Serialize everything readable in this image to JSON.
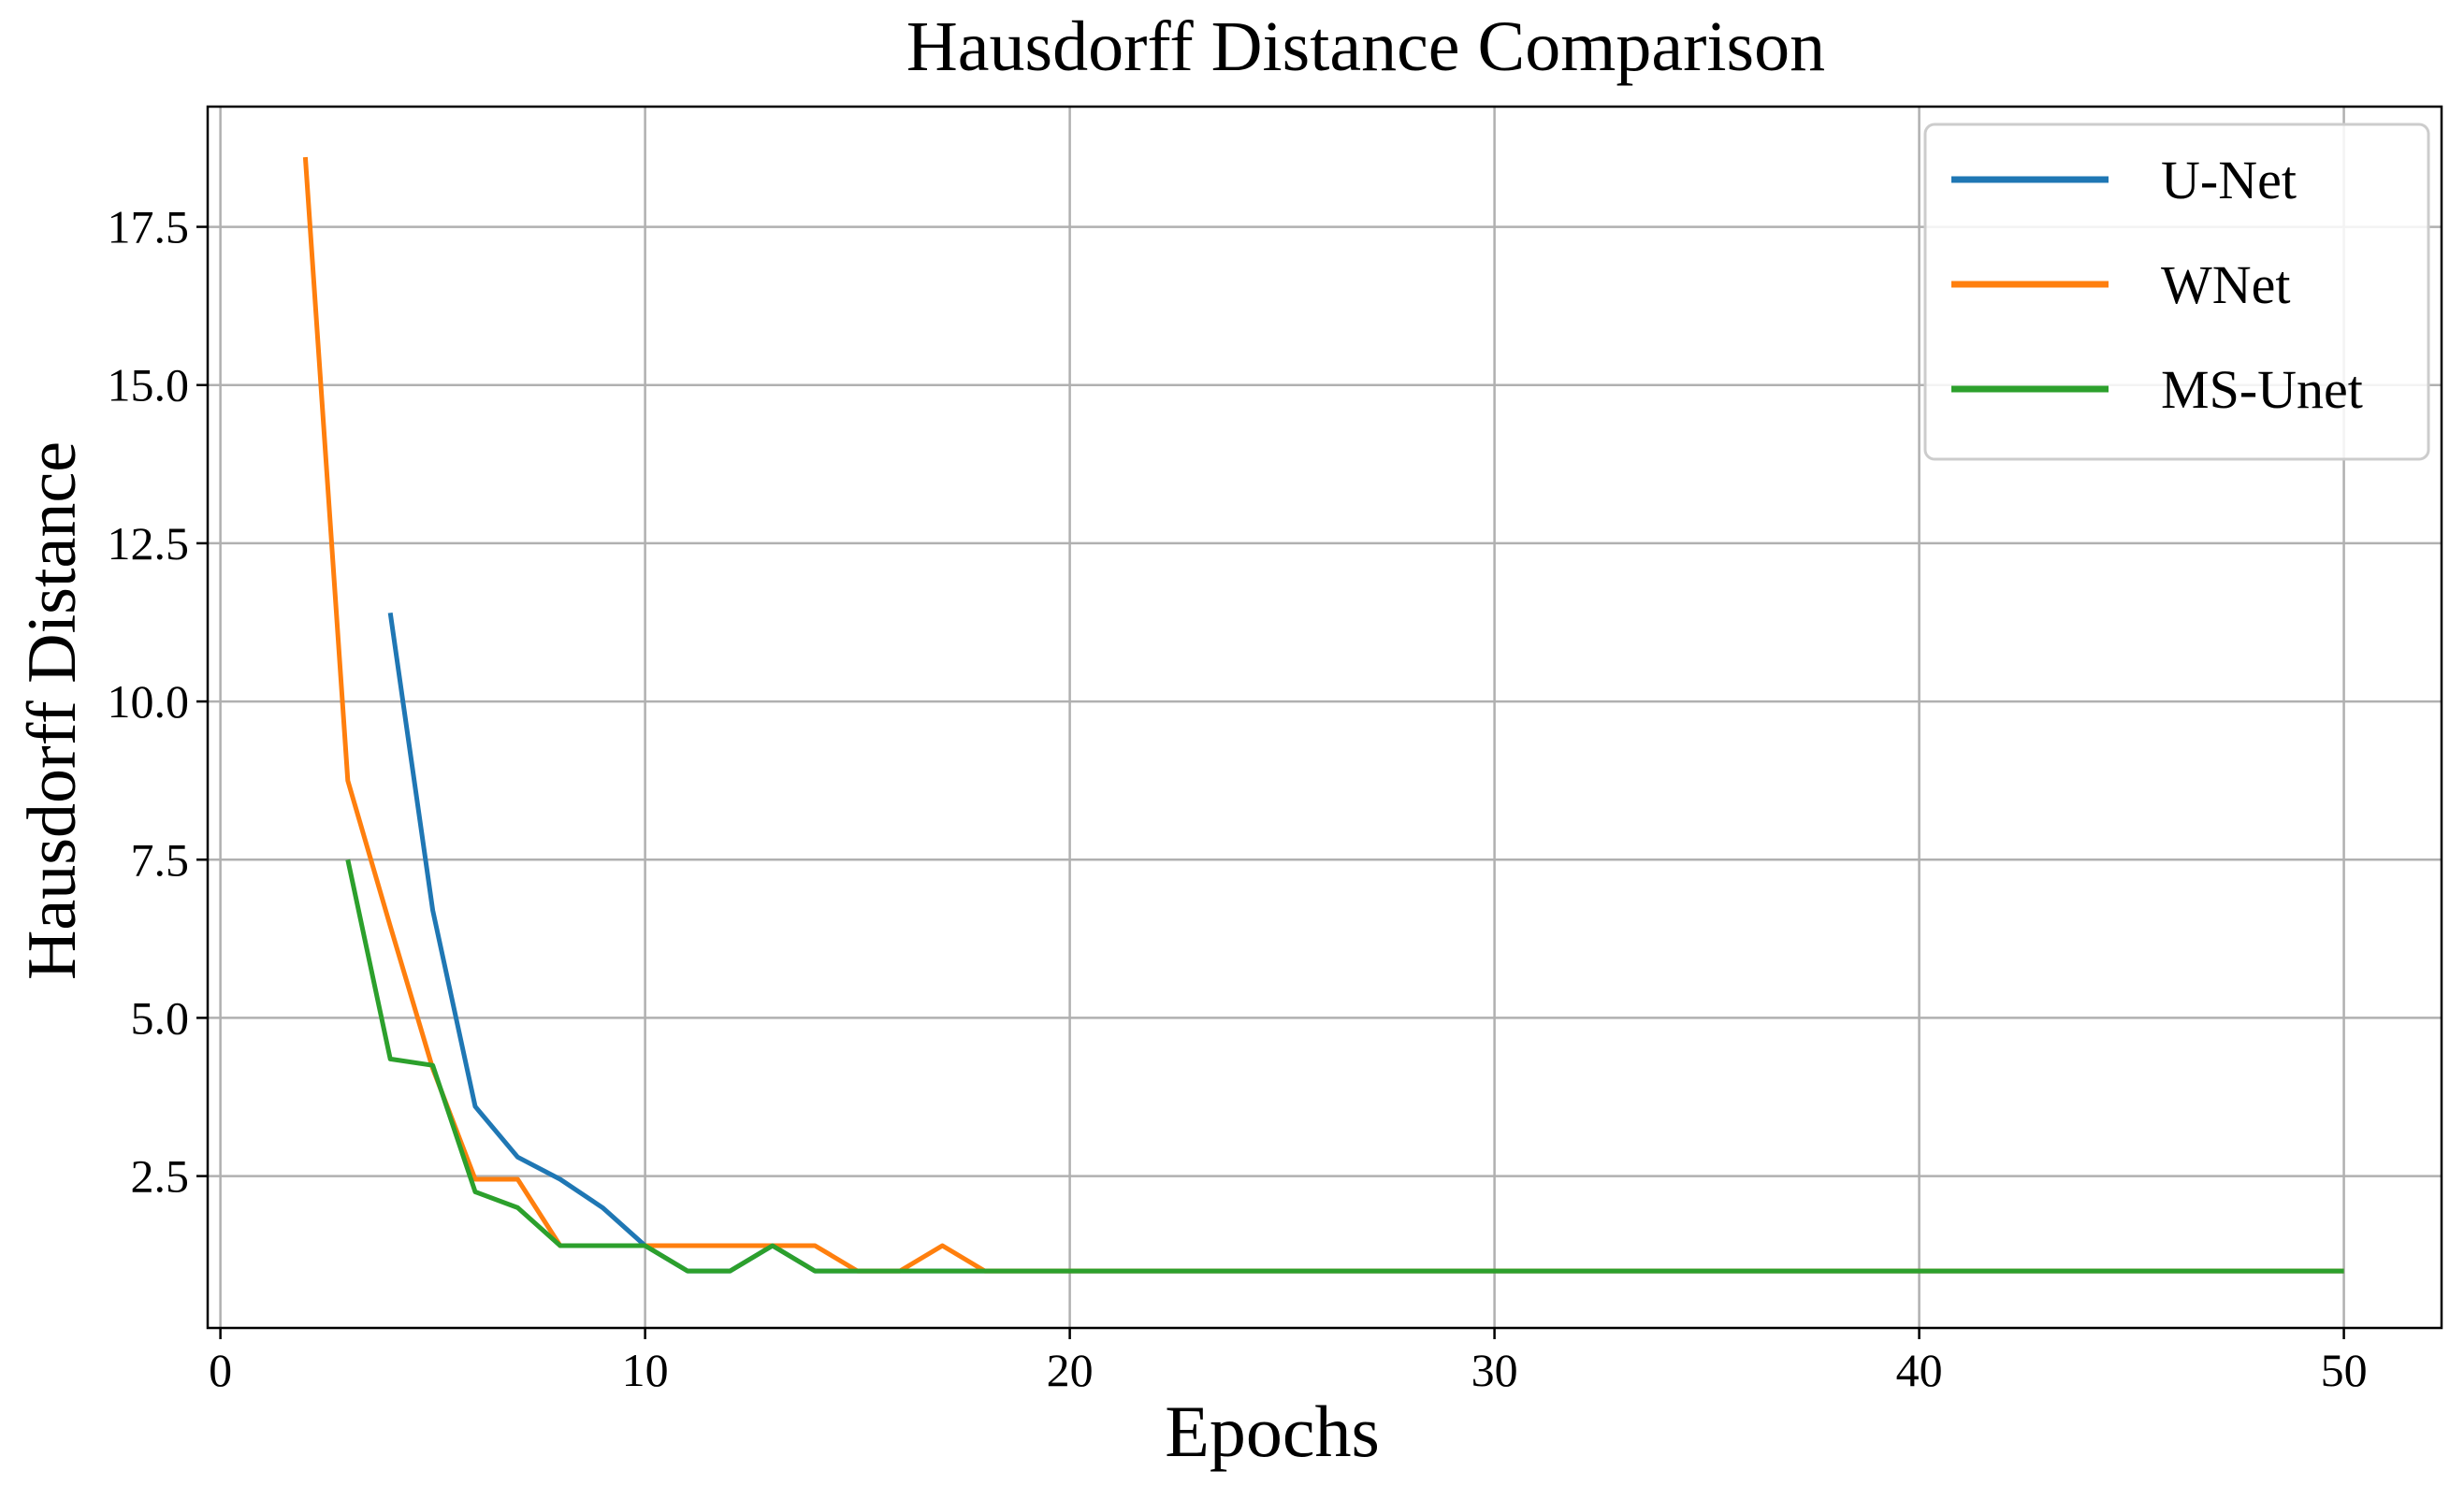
{
  "chart_data": {
    "type": "line",
    "title": "Hausdorff Distance Comparison",
    "xlabel": "Epochs",
    "ylabel": "Hausdorff Distance",
    "xlim": [
      -0.3,
      52.3
    ],
    "ylim": [
      0.1,
      19.4
    ],
    "xticks": [
      0,
      10,
      20,
      30,
      40,
      50
    ],
    "xtick_labels": [
      "0",
      "10",
      "20",
      "30",
      "40",
      "50"
    ],
    "yticks": [
      2.5,
      5.0,
      7.5,
      10.0,
      12.5,
      15.0,
      17.5
    ],
    "ytick_labels": [
      "2.5",
      "5.0",
      "7.5",
      "10.0",
      "12.5",
      "15.0",
      "17.5"
    ],
    "grid": true,
    "legend_position": "top-right",
    "series": [
      {
        "name": "U-Net",
        "color": "#1f77b4",
        "x": [
          4,
          5,
          6,
          7,
          8,
          9,
          10,
          11,
          12,
          13,
          14,
          15,
          16,
          17,
          18,
          19,
          20,
          21,
          22,
          23,
          24,
          25,
          26,
          27,
          28,
          29,
          30,
          31,
          32,
          33,
          34,
          35,
          36,
          37,
          38,
          39,
          40,
          41,
          42,
          43,
          44,
          45,
          46,
          47,
          48,
          49,
          50
        ],
        "y": [
          11.4,
          6.7,
          3.6,
          2.8,
          2.45,
          2.0,
          1.4,
          1.0,
          1.0,
          1.4,
          1.0,
          1.0,
          1.0,
          1.0,
          1.0,
          1.0,
          1.0,
          1.0,
          1.0,
          1.0,
          1.0,
          1.0,
          1.0,
          1.0,
          1.0,
          1.0,
          1.0,
          1.0,
          1.0,
          1.0,
          1.0,
          1.0,
          1.0,
          1.0,
          1.0,
          1.0,
          1.0,
          1.0,
          1.0,
          1.0,
          1.0,
          1.0,
          1.0,
          1.0,
          1.0,
          1.0,
          1.0
        ]
      },
      {
        "name": "WNet",
        "color": "#ff7f0e",
        "x": [
          2,
          3,
          4,
          5,
          6,
          7,
          8,
          9,
          10,
          11,
          12,
          13,
          14,
          15,
          16,
          17,
          18,
          19,
          20,
          21,
          22,
          23,
          24,
          25,
          26,
          27,
          28,
          29,
          30,
          31,
          32,
          33,
          34,
          35,
          36,
          37,
          38,
          39,
          40,
          41,
          42,
          43,
          44,
          45,
          46,
          47,
          48,
          49,
          50
        ],
        "y": [
          18.6,
          8.75,
          6.45,
          4.2,
          2.45,
          2.45,
          1.4,
          1.4,
          1.4,
          1.4,
          1.4,
          1.4,
          1.4,
          1.0,
          1.0,
          1.4,
          1.0,
          1.0,
          1.0,
          1.0,
          1.0,
          1.0,
          1.0,
          1.0,
          1.0,
          1.0,
          1.0,
          1.0,
          1.0,
          1.0,
          1.0,
          1.0,
          1.0,
          1.0,
          1.0,
          1.0,
          1.0,
          1.0,
          1.0,
          1.0,
          1.0,
          1.0,
          1.0,
          1.0,
          1.0,
          1.0,
          1.0,
          1.0,
          1.0
        ]
      },
      {
        "name": "MS-Unet",
        "color": "#2ca02c",
        "x": [
          3,
          4,
          5,
          6,
          7,
          8,
          9,
          10,
          11,
          12,
          13,
          14,
          15,
          16,
          17,
          18,
          19,
          20,
          21,
          22,
          23,
          24,
          25,
          26,
          27,
          28,
          29,
          30,
          31,
          32,
          33,
          34,
          35,
          36,
          37,
          38,
          39,
          40,
          41,
          42,
          43,
          44,
          45,
          46,
          47,
          48,
          49,
          50
        ],
        "y": [
          7.5,
          4.35,
          4.25,
          2.25,
          2.0,
          1.4,
          1.4,
          1.4,
          1.0,
          1.0,
          1.4,
          1.0,
          1.0,
          1.0,
          1.0,
          1.0,
          1.0,
          1.0,
          1.0,
          1.0,
          1.0,
          1.0,
          1.0,
          1.0,
          1.0,
          1.0,
          1.0,
          1.0,
          1.0,
          1.0,
          1.0,
          1.0,
          1.0,
          1.0,
          1.0,
          1.0,
          1.0,
          1.0,
          1.0,
          1.0,
          1.0,
          1.0,
          1.0,
          1.0,
          1.0,
          1.0,
          1.0,
          1.0
        ]
      }
    ]
  }
}
